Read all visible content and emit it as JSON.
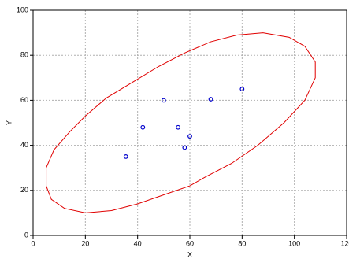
{
  "chart_data": {
    "type": "scatter",
    "x_label": "X",
    "y_label": "Y",
    "x": [
      35.5,
      42,
      50,
      55.5,
      58,
      60,
      68,
      80
    ],
    "values": [
      35,
      48,
      60,
      48,
      39,
      44,
      60.5,
      65
    ],
    "color": "#0000cc",
    "ellipse": {
      "color": "#e00000",
      "x": [
        5,
        5,
        8,
        14,
        20,
        28,
        38,
        48,
        58,
        68,
        78,
        88,
        98,
        104,
        108,
        108,
        104,
        96,
        86,
        76,
        66,
        60,
        50,
        40,
        30,
        20,
        12,
        7,
        5
      ],
      "y": [
        22,
        30,
        38,
        46,
        53,
        61,
        68,
        75,
        81,
        86,
        89,
        90,
        88,
        84,
        77,
        70,
        60,
        50,
        40,
        32,
        26,
        22,
        18,
        14,
        11,
        10,
        12,
        16,
        22
      ]
    },
    "xlim": [
      0,
      120
    ],
    "xticks": [
      0,
      20,
      40,
      60,
      80,
      100,
      120
    ],
    "ylim": [
      0,
      100
    ],
    "yticks": [
      0,
      20,
      40,
      60,
      80,
      100
    ],
    "grid": true
  }
}
